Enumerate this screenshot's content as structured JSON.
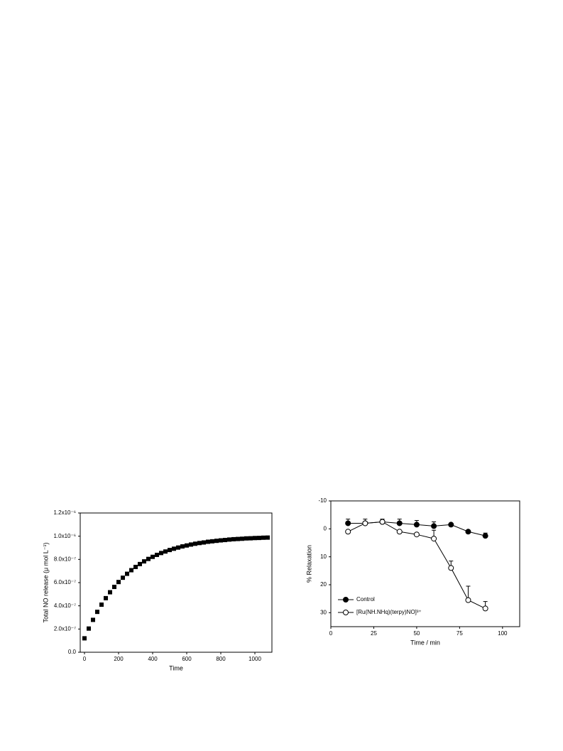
{
  "chart_data": [
    {
      "type": "scatter",
      "x_label": "Time",
      "y_label": "Total NO release (μ mol L⁻¹)",
      "x": [
        0,
        25,
        50,
        75,
        100,
        125,
        150,
        175,
        200,
        225,
        250,
        275,
        300,
        325,
        350,
        375,
        400,
        425,
        450,
        475,
        500,
        525,
        550,
        575,
        600,
        625,
        650,
        675,
        700,
        725,
        750,
        775,
        800,
        825,
        850,
        875,
        900,
        925,
        950,
        975,
        1000,
        1025,
        1050,
        1075
      ],
      "series": [
        {
          "name": "Total NO release",
          "color": "#000000",
          "marker": "square",
          "values": [
            1.2e-07,
            2.04e-07,
            2.79e-07,
            3.48e-07,
            4.1e-07,
            4.66e-07,
            5.17e-07,
            5.63e-07,
            6.05e-07,
            6.42e-07,
            6.76e-07,
            7.07e-07,
            7.35e-07,
            7.6e-07,
            7.83e-07,
            8.04e-07,
            8.22e-07,
            8.39e-07,
            8.55e-07,
            8.68e-07,
            8.81e-07,
            8.92e-07,
            9.02e-07,
            9.12e-07,
            9.2e-07,
            9.28e-07,
            9.35e-07,
            9.41e-07,
            9.46e-07,
            9.52e-07,
            9.56e-07,
            9.6e-07,
            9.64e-07,
            9.67e-07,
            9.71e-07,
            9.74e-07,
            9.76e-07,
            9.78e-07,
            9.81e-07,
            9.82e-07,
            9.84e-07,
            9.85e-07,
            9.87e-07,
            9.88e-07
          ]
        }
      ],
      "xlim": [
        -25,
        1100
      ],
      "xticks": [
        0,
        200,
        400,
        600,
        800,
        1000
      ],
      "ylim": [
        0,
        1.2e-06
      ],
      "yticks": [
        {
          "value": 0,
          "label": "0.0"
        },
        {
          "value": 2e-07,
          "label": "2.0x10⁻⁷"
        },
        {
          "value": 4e-07,
          "label": "4.0x10⁻⁷"
        },
        {
          "value": 6e-07,
          "label": "6.0x10⁻⁷"
        },
        {
          "value": 8e-07,
          "label": "8.0x10⁻⁷"
        },
        {
          "value": 1e-06,
          "label": "1.0x10⁻⁶"
        },
        {
          "value": 1.2e-06,
          "label": "1.2x10⁻⁶"
        }
      ]
    },
    {
      "type": "line",
      "x_label": "Time / min",
      "y_label": "% Relaxation",
      "x": [
        10,
        20,
        30,
        40,
        50,
        60,
        70,
        80,
        90
      ],
      "series": [
        {
          "name": "Control",
          "color": "#000000",
          "marker": "filled-circle",
          "values": [
            -2,
            -2,
            -2.5,
            -2,
            -1.5,
            -1,
            -1.5,
            1,
            2.5
          ],
          "errors": [
            1.5,
            1.5,
            1,
            1.5,
            1.5,
            1.5,
            0,
            0,
            1
          ]
        },
        {
          "name": "[Ru(NH.NHq)(terpy)NO]³⁺",
          "color": "#000000",
          "marker": "open-circle",
          "values": [
            1,
            -2,
            -2.5,
            1,
            2,
            3.5,
            14,
            25.5,
            28.5
          ],
          "errors": [
            0,
            0,
            0,
            0,
            0,
            3,
            2.5,
            5,
            2.5
          ]
        }
      ],
      "xlim": [
        0,
        110
      ],
      "xticks": [
        0,
        25,
        50,
        75,
        100
      ],
      "ylim": [
        -10,
        35
      ],
      "y_inverted": true,
      "yticks": [
        -10,
        0,
        10,
        20,
        30
      ],
      "legend": "lower-left"
    }
  ]
}
